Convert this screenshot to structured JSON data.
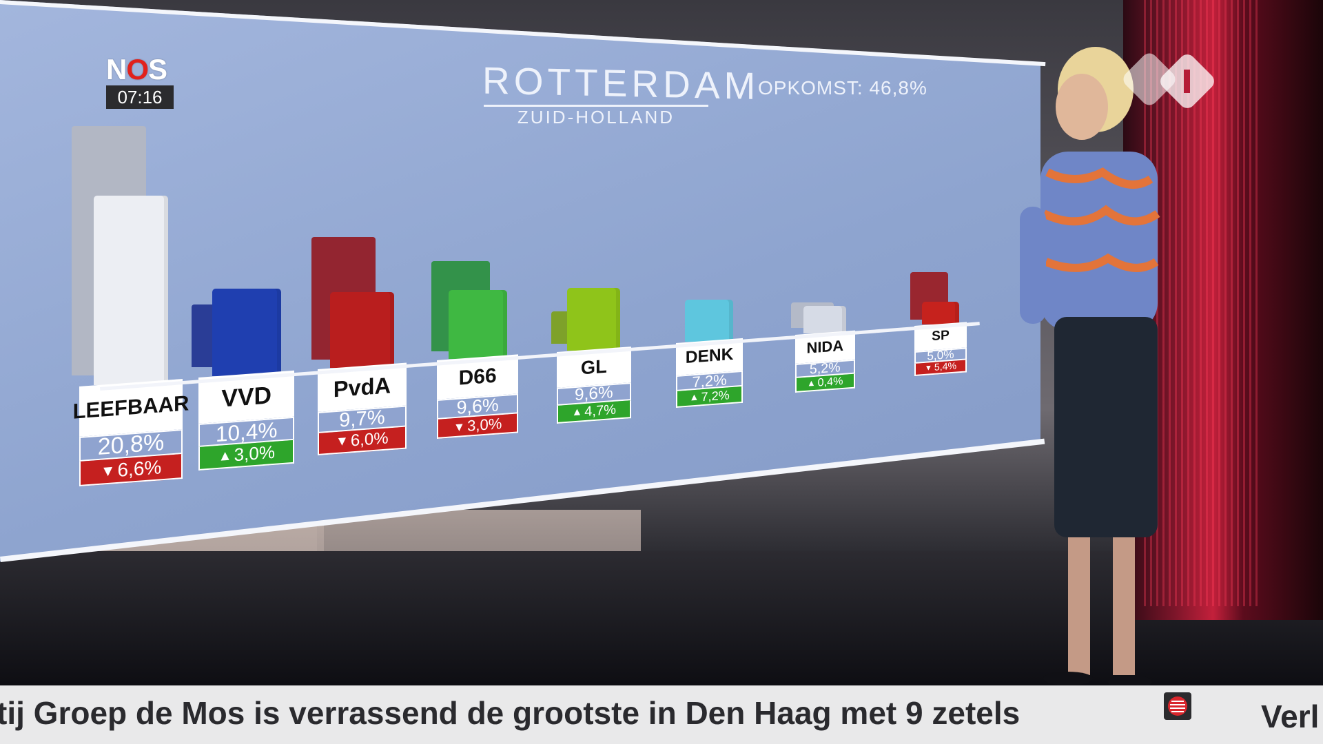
{
  "broadcast": {
    "logo_text": "NOS",
    "clock": "07:16",
    "channel_logo": "npo-1-icon"
  },
  "chart_data": {
    "type": "bar",
    "title": "ROTTERDAM",
    "subtitle": "ZUID-HOLLAND",
    "annotation": "OPKOMST: 46,8%",
    "categories": [
      "LEEFBAAR",
      "VVD",
      "PvdA",
      "D66",
      "GL",
      "DENK",
      "NIDA",
      "SP"
    ],
    "series": [
      {
        "values": [
          20.8,
          10.4,
          9.7,
          9.6,
          9.6,
          7.2,
          5.2,
          5.0
        ]
      },
      {
        "values": [
          27.4,
          7.4,
          15.7,
          12.6,
          4.9,
          0,
          4.8,
          10.4
        ]
      }
    ],
    "value_labels": [
      "20,8%",
      "10,4%",
      "9,7%",
      "9,6%",
      "9,6%",
      "7,2%",
      "5,2%",
      "5,0%"
    ],
    "change_labels": [
      "6,6%",
      "3,0%",
      "6,0%",
      "3,0%",
      "4,7%",
      "7,2%",
      "0,4%",
      "5,4%"
    ],
    "change_direction": [
      "down",
      "up",
      "down",
      "down",
      "up",
      "up",
      "up",
      "down"
    ],
    "colors_current": [
      "#eceef3",
      "#1f3fb0",
      "#b91e1e",
      "#3fb842",
      "#8fc41a",
      "#5ec6de",
      "#d6dbe6",
      "#c6221d"
    ],
    "colors_previous": [
      "#b2b7c4",
      "#2a3d96",
      "#932530",
      "#33924a",
      "#7ea12a",
      "#5ec6de",
      "#b4bac8",
      "#99262f"
    ],
    "ylim": [
      0,
      30
    ],
    "legend": "none",
    "grid": false
  },
  "ticker": {
    "headline": "tij Groep de Mos is verrassend de grootste in Den Haag met 9 zetels",
    "next": "Verl",
    "icon": "nos-ticker-icon"
  }
}
